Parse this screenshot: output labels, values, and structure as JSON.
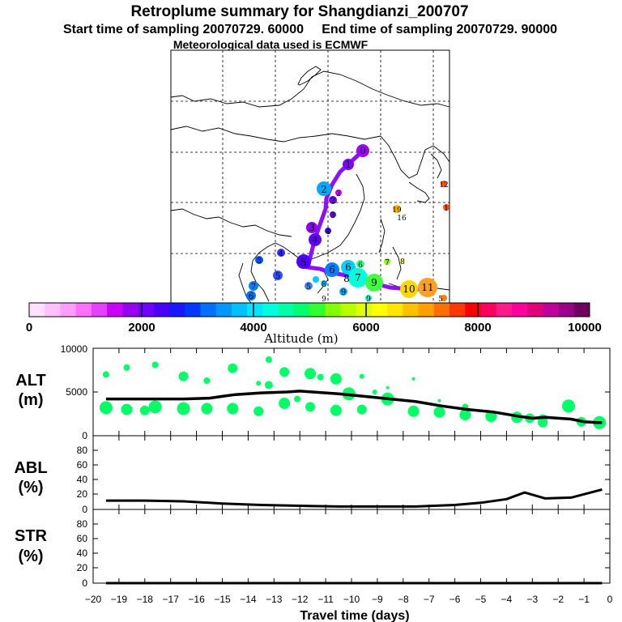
{
  "header": {
    "title": "Retroplume summary for Shangdianzi_200707",
    "line2": "Start time of sampling 20070729. 60000     End time of sampling 20070729. 90000",
    "line3": "Meteorological data used is ECMWF"
  },
  "colors": {
    "scale": [
      "#ffe0ff",
      "#ffc0ff",
      "#ff9cff",
      "#ff70ff",
      "#e640ff",
      "#cc00ff",
      "#9a00f0",
      "#7000ff",
      "#4800ff",
      "#1818ff",
      "#0038ff",
      "#0070ff",
      "#0098ff",
      "#00c0ff",
      "#00e6ff",
      "#00ffdc",
      "#00ffa6",
      "#00ff70",
      "#30ff30",
      "#80ff00",
      "#b8ff00",
      "#e0ff00",
      "#ffff00",
      "#ffe600",
      "#ffc000",
      "#ffa000",
      "#ff7000",
      "#ff3800",
      "#ff0000",
      "#ff0060",
      "#ff1a8c",
      "#ff00a0",
      "#e0007a",
      "#c0009c",
      "#9a0088",
      "#700060"
    ],
    "scatter": "#00ff66",
    "line": "#000000"
  },
  "map": {
    "labels": [
      {
        "t": "0",
        "c": "#a000ff"
      },
      {
        "t": "1",
        "c": "#8000ff"
      },
      {
        "t": "2",
        "c": "#00aaff"
      },
      {
        "t": "2",
        "c": "#7000ff"
      },
      {
        "t": "2",
        "c": "#cc00ff"
      },
      {
        "t": "3",
        "c": "#9000ff"
      },
      {
        "t": "3",
        "c": "#6000ff"
      },
      {
        "t": "3",
        "c": "#0050ff"
      },
      {
        "t": "4",
        "c": "#6000ff"
      },
      {
        "t": "4",
        "c": "#4000ff"
      },
      {
        "t": "4",
        "c": "#3030ff"
      },
      {
        "t": "5",
        "c": "#5000ff"
      },
      {
        "t": "5",
        "c": "#3050ff"
      },
      {
        "t": "5",
        "c": "#4080ff"
      },
      {
        "t": "6",
        "c": "#0080ff"
      },
      {
        "t": "6",
        "c": "#00d0ff"
      },
      {
        "t": "7",
        "c": "#00ffdd"
      },
      {
        "t": "6",
        "c": "#30ff80"
      },
      {
        "t": "7",
        "c": "#90ff00"
      },
      {
        "t": "8",
        "c": "#ffff40"
      },
      {
        "t": "8",
        "c": "#00ffcc"
      },
      {
        "t": "9",
        "c": "#40ff40"
      },
      {
        "t": "10",
        "c": "#ffd700"
      },
      {
        "t": "11",
        "c": "#ffa020"
      },
      {
        "t": "19",
        "c": "#ffb000"
      },
      {
        "t": "16",
        "c": "#ffee40"
      },
      {
        "t": "12",
        "c": "#ff5010"
      },
      {
        "t": "1",
        "c": "#ff5010"
      },
      {
        "t": "7",
        "c": "#0080ff"
      },
      {
        "t": "6",
        "c": "#0070ff"
      },
      {
        "t": "9",
        "c": "#00aaff"
      },
      {
        "t": "8",
        "c": "#00c0ff"
      },
      {
        "t": "9",
        "c": "#00c8ff"
      },
      {
        "t": "9",
        "c": "#00ffcc"
      },
      {
        "t": "5",
        "c": "#ff8000"
      }
    ]
  },
  "colorbar": {
    "ticks": [
      "0",
      "2000",
      "4000",
      "6000",
      "8000",
      "10000"
    ],
    "label": "Altitude (m)"
  },
  "panels": [
    {
      "label": "ALT",
      "unit": "(m)"
    },
    {
      "label": "ABL",
      "unit": "(%)"
    },
    {
      "label": "STR",
      "unit": "(%)"
    }
  ],
  "x_axis": {
    "label": "Travel time (days)",
    "ticks": [
      "−20",
      "−19",
      "−18",
      "−17",
      "−16",
      "−15",
      "−14",
      "−13",
      "−12",
      "−11",
      "−10",
      "−9",
      "−8",
      "−7",
      "−6",
      "−5",
      "−4",
      "−3",
      "−2",
      "−1",
      "0"
    ]
  },
  "chart_data": [
    {
      "type": "line",
      "panel": "ALT",
      "ylabel": "ALT (m)",
      "ylim": [
        0,
        10000
      ],
      "yticks": [
        "10000",
        "5000",
        "0"
      ],
      "xlim": [
        -20,
        0
      ],
      "x": [
        -19.5,
        -18,
        -16.5,
        -15.5,
        -15,
        -14.5,
        -13.5,
        -12.5,
        -12,
        -11.5,
        -10.5,
        -9.5,
        -8.5,
        -7.5,
        -6.5,
        -5.5,
        -4.5,
        -3.5,
        -3,
        -2.5,
        -2,
        -1.5,
        -1,
        -0.5,
        -0.3
      ],
      "values": [
        4200,
        4200,
        4200,
        4300,
        4500,
        4700,
        4900,
        5000,
        5100,
        5000,
        4800,
        4500,
        4200,
        3900,
        3400,
        3000,
        2700,
        2200,
        2000,
        2100,
        2000,
        1900,
        1600,
        1500,
        1500
      ],
      "scatter_x": [
        -19.5,
        -19.5,
        -18.7,
        -18.7,
        -18,
        -17.6,
        -17.6,
        -16.5,
        -16.5,
        -15.6,
        -15.6,
        -14.6,
        -14.6,
        -13.6,
        -13.6,
        -13.2,
        -13.2,
        -12.6,
        -12.6,
        -12.1,
        -11.6,
        -11.6,
        -11.2,
        -10.6,
        -10.6,
        -10.1,
        -9.6,
        -9.6,
        -9.1,
        -8.6,
        -8.6,
        -7.6,
        -7.6,
        -6.6,
        -6.6,
        -5.6,
        -5.6,
        -4.6,
        -3.6,
        -3.1,
        -2.6,
        -2.6,
        -1.6,
        -1.1,
        -0.4
      ],
      "scatter_y": [
        7000,
        3200,
        7800,
        3000,
        2900,
        8100,
        3300,
        6800,
        3100,
        6300,
        3100,
        7700,
        3100,
        6000,
        2800,
        8700,
        5800,
        7300,
        3700,
        4200,
        7100,
        3300,
        6700,
        6500,
        2900,
        4800,
        6800,
        3000,
        5000,
        5500,
        4200,
        6500,
        2800,
        4000,
        2700,
        3300,
        2400,
        2200,
        2100,
        2000,
        1900,
        1500,
        3400,
        1600,
        1500
      ],
      "scatter_size": [
        4,
        8,
        4,
        7,
        6,
        4,
        8,
        6,
        8,
        4,
        7,
        6,
        7,
        3,
        6,
        4,
        5,
        6,
        7,
        4,
        7,
        6,
        4,
        7,
        7,
        8,
        3,
        6,
        3,
        2,
        8,
        2,
        7,
        2,
        7,
        4,
        7,
        7,
        7,
        6,
        6,
        6,
        8,
        6,
        8
      ]
    },
    {
      "type": "line",
      "panel": "ABL",
      "ylabel": "ABL (%)",
      "ylim": [
        0,
        100
      ],
      "yticks": [
        "80",
        "60",
        "40",
        "20",
        "0"
      ],
      "xlim": [
        -20,
        0
      ],
      "x": [
        -19.5,
        -18,
        -16.5,
        -15,
        -13.5,
        -12,
        -10.5,
        -9,
        -7.5,
        -6,
        -5,
        -4,
        -3.3,
        -2.5,
        -1.5,
        -0.3
      ],
      "values": [
        12,
        12,
        11,
        8,
        6,
        5,
        4,
        4,
        4,
        6,
        9,
        14,
        23,
        15,
        16,
        27
      ]
    },
    {
      "type": "line",
      "panel": "STR",
      "ylabel": "STR (%)",
      "ylim": [
        0,
        100
      ],
      "yticks": [
        "80",
        "60",
        "40",
        "20",
        "0"
      ],
      "xlim": [
        -20,
        0
      ],
      "x": [
        -19.5,
        -15,
        -10,
        -5,
        -0.3
      ],
      "values": [
        0,
        0,
        0,
        0,
        0
      ]
    }
  ]
}
